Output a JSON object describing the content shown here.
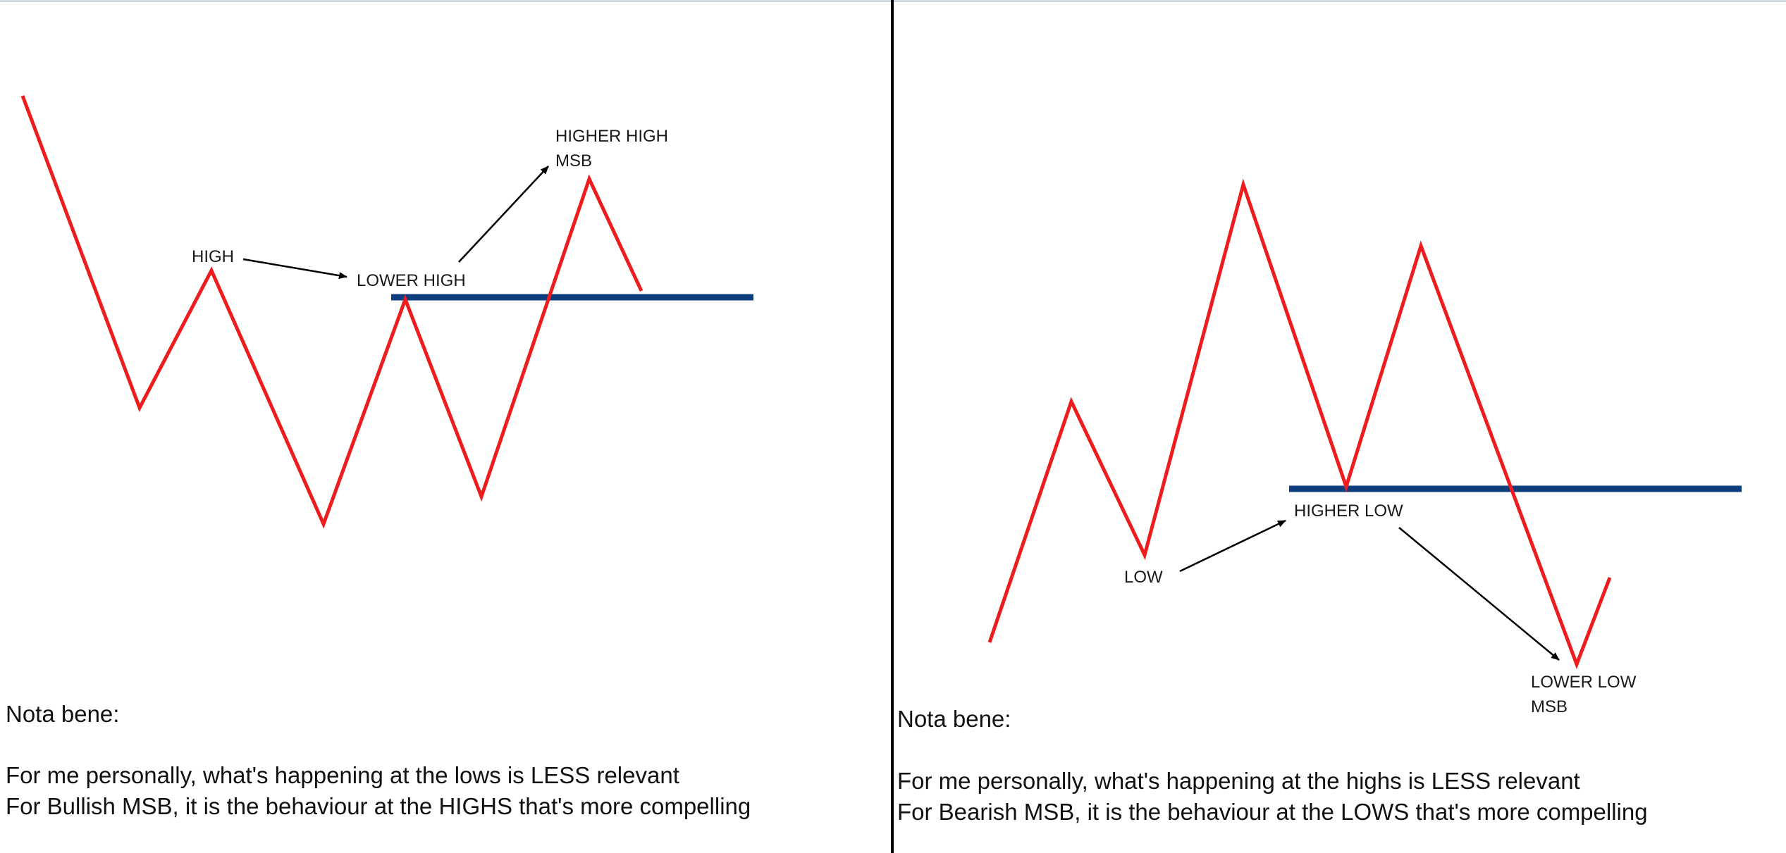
{
  "colors": {
    "price_line": "#ee1c1c",
    "level_line": "#0f3e7f",
    "arrow": "#000000",
    "divider": "#000000",
    "top_border": "#b7c1cc",
    "text": "#111111"
  },
  "bullish": {
    "labels": {
      "high": "HIGH",
      "lower_high": "LOWER HIGH",
      "higher_high": "HIGHER HIGH",
      "msb": "MSB"
    },
    "note": {
      "title": "Nota bene:",
      "line1": "For me personally, what's happening at the lows is LESS relevant",
      "line2": "For Bullish MSB, it is the behaviour at the HIGHS that's more compelling"
    }
  },
  "bearish": {
    "labels": {
      "low": "LOW",
      "higher_low": "HIGHER LOW",
      "lower_low": "LOWER LOW",
      "msb": "MSB"
    },
    "note": {
      "title": "Nota bene:",
      "line1": "For me personally, what's happening at the highs is LESS relevant",
      "line2": "For Bearish MSB, it is the behaviour at the LOWS that's more compelling"
    }
  }
}
